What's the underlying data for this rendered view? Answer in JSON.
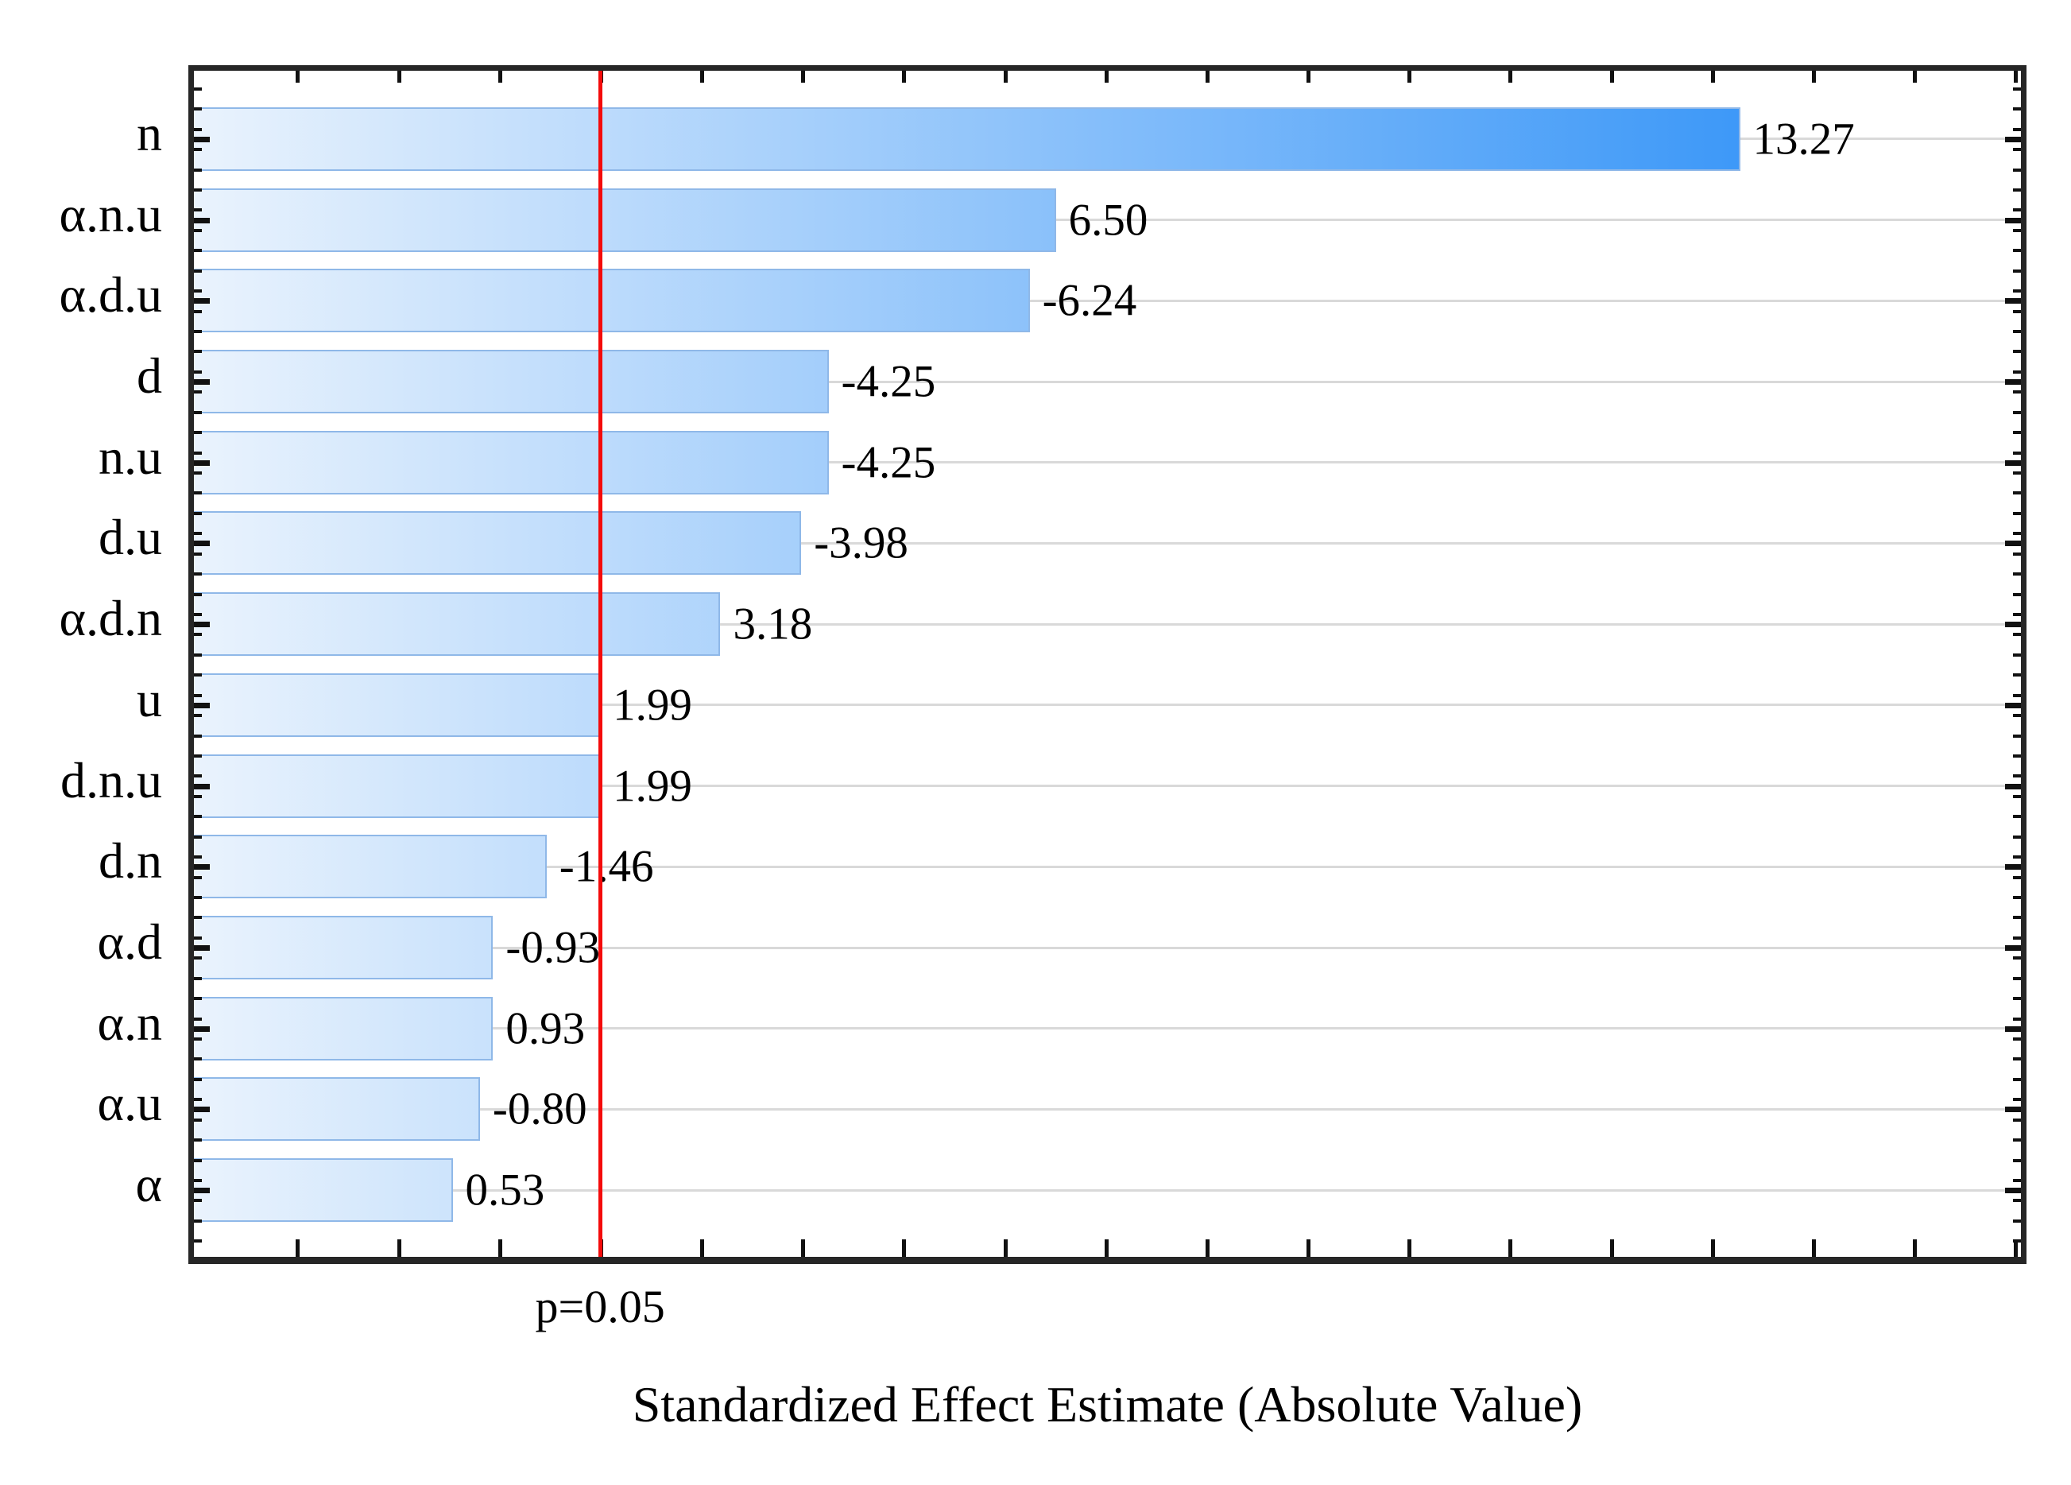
{
  "chart_data": {
    "type": "bar",
    "orientation": "horizontal",
    "title": "",
    "xlabel": "Standardized Effect Estimate (Absolute Value)",
    "ylabel": "",
    "categories": [
      "n",
      "α.n.u",
      "α.d.u",
      "d",
      "n.u",
      "d.u",
      "α.d.n",
      "u",
      "d.n.u",
      "d.n",
      "α.d",
      "α.n",
      "α.u",
      "α"
    ],
    "values": [
      13.27,
      6.5,
      -6.24,
      -4.25,
      -4.25,
      -3.98,
      3.18,
      1.99,
      1.99,
      -1.46,
      -0.93,
      0.93,
      -0.8,
      0.53
    ],
    "value_labels": [
      "13.27",
      "6.50",
      "-6.24",
      "-4.25",
      "-4.25",
      "-3.98",
      "3.18",
      "1.99",
      "1.99",
      "-1.46",
      "-0.93",
      "0.93",
      "-0.80",
      "0.53"
    ],
    "bars_encode": "absolute value, anchored at left axis edge",
    "xlim": [
      -2.03,
      16.05
    ],
    "x_tick_start": -1,
    "x_tick_end": 16,
    "x_tick_step": 1,
    "grid": "horizontal-category-gridlines",
    "legend": "none",
    "reference_line": {
      "value": 1.99,
      "label": "p=0.05"
    },
    "colors": {
      "bar_gradient_start": "#eaf3fd",
      "bar_gradient_end": "#1e88f7",
      "bar_border": "#8fb8e8",
      "reference_line": "#f40b0b",
      "gridline": "#d9d9d9",
      "frame": "#262626",
      "text": "#000000",
      "background": "#ffffff"
    }
  }
}
